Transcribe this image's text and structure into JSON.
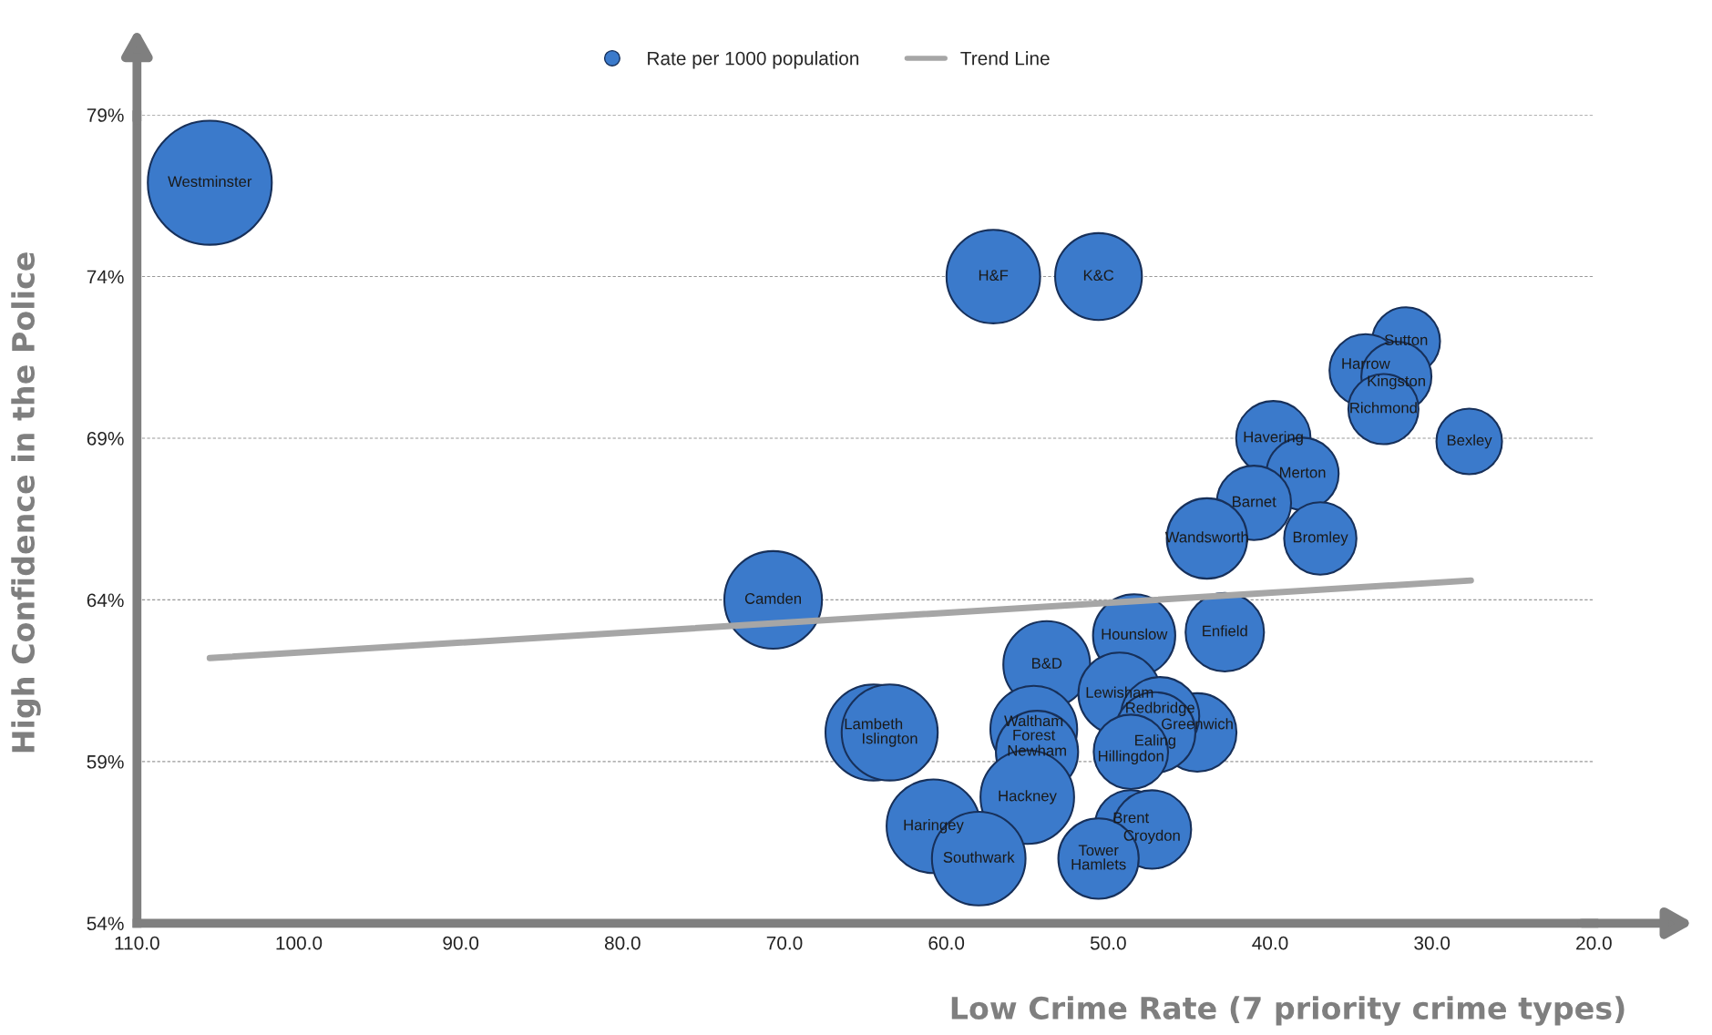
{
  "chart_data": {
    "type": "bubble",
    "xlabel": "Low Crime Rate (7 priority crime types)",
    "ylabel": "High Confidence in the Police",
    "xlim": [
      110,
      20
    ],
    "xticks": [
      {
        "value": 110,
        "label": "110.0"
      },
      {
        "value": 100,
        "label": "100.0"
      },
      {
        "value": 90,
        "label": "90.0"
      },
      {
        "value": 80,
        "label": "80.0"
      },
      {
        "value": 70,
        "label": "70.0"
      },
      {
        "value": 60,
        "label": "60.0"
      },
      {
        "value": 50,
        "label": "50.0"
      },
      {
        "value": 40,
        "label": "40.0"
      },
      {
        "value": 30,
        "label": "30.0"
      },
      {
        "value": 20,
        "label": "20.0"
      }
    ],
    "ylim": [
      54,
      79
    ],
    "yticks": [
      {
        "value": 54,
        "label": "54%"
      },
      {
        "value": 59,
        "label": "59%"
      },
      {
        "value": 64,
        "label": "64%"
      },
      {
        "value": 69,
        "label": "69%"
      },
      {
        "value": 74,
        "label": "74%"
      },
      {
        "value": 79,
        "label": "79%"
      }
    ],
    "grid": "y",
    "legend": "top",
    "series": [
      {
        "name": "Rate per 1000 population",
        "color": "#3b7acb",
        "x": [
          105.5,
          57.1,
          50.6,
          31.6,
          34.1,
          32.2,
          33.0,
          27.7,
          39.8,
          38.0,
          41.0,
          43.9,
          36.9,
          70.7,
          48.4,
          42.8,
          53.8,
          49.3,
          54.6,
          54.4,
          64.5,
          63.5,
          44.5,
          46.8,
          47.1,
          48.6,
          55.0,
          60.8,
          58.0,
          48.6,
          47.3,
          50.6
        ],
        "values": [
          76.9,
          74.0,
          74.0,
          72.0,
          71.1,
          70.9,
          69.9,
          68.9,
          69.0,
          67.9,
          67.0,
          65.9,
          65.9,
          64.0,
          62.9,
          63.0,
          62.0,
          61.1,
          60.0,
          59.3,
          59.9,
          59.9,
          59.9,
          60.4,
          59.9,
          59.3,
          57.9,
          57.0,
          56.0,
          57.0,
          56.9,
          56.0
        ],
        "sizes": [
          1,
          0.57,
          0.49,
          0.3,
          0.34,
          0.32,
          0.32,
          0.28,
          0.36,
          0.34,
          0.36,
          0.42,
          0.34,
          0.62,
          0.44,
          0.4,
          0.49,
          0.44,
          0.49,
          0.44,
          0.6,
          0.6,
          0.4,
          0.4,
          0.42,
          0.36,
          0.57,
          0.57,
          0.57,
          0.34,
          0.4,
          0.42
        ]
      },
      {
        "name": "Trend Line",
        "type": "line",
        "color": "#a6a6a6",
        "x": [
          105.5,
          27.6
        ],
        "values": [
          62.2,
          64.6
        ]
      }
    ],
    "annotations": [
      {
        "text": "Westminster",
        "x": 105.5,
        "y": 76.9
      },
      {
        "text": "H&F",
        "x": 57.1,
        "y": 74.0
      },
      {
        "text": "K&C",
        "x": 50.6,
        "y": 74.0
      },
      {
        "text": "Sutton",
        "x": 31.6,
        "y": 72.0
      },
      {
        "text": "Harrow",
        "x": 34.1,
        "y": 71.1
      },
      {
        "text": "Kingston",
        "x": 32.2,
        "y": 70.9
      },
      {
        "text": "Richmond",
        "x": 33.0,
        "y": 69.9
      },
      {
        "text": "Bexley",
        "x": 27.7,
        "y": 68.9
      },
      {
        "text": "Havering",
        "x": 39.8,
        "y": 69.0
      },
      {
        "text": "Merton",
        "x": 38.0,
        "y": 67.9
      },
      {
        "text": "Barnet",
        "x": 41.0,
        "y": 67.0
      },
      {
        "text": "Wandsworth",
        "x": 43.9,
        "y": 65.9
      },
      {
        "text": "Bromley",
        "x": 36.9,
        "y": 65.9
      },
      {
        "text": "Camden",
        "x": 70.7,
        "y": 64.0
      },
      {
        "text": "Hounslow",
        "x": 48.4,
        "y": 62.9
      },
      {
        "text": "Enfield",
        "x": 42.8,
        "y": 63.0
      },
      {
        "text": "B&D",
        "x": 53.8,
        "y": 62.0
      },
      {
        "text": "Lewisham",
        "x": 49.3,
        "y": 61.1
      },
      {
        "text": "Waltham\nForest",
        "x": 54.6,
        "y": 60.0
      },
      {
        "text": "Newham",
        "x": 54.4,
        "y": 59.3
      },
      {
        "text": "Lambeth",
        "x": 64.5,
        "y": 59.9
      },
      {
        "text": "Islington",
        "x": 63.5,
        "y": 59.9
      },
      {
        "text": "Greenwich",
        "x": 44.5,
        "y": 59.9
      },
      {
        "text": "Redbridge",
        "x": 46.8,
        "y": 60.4
      },
      {
        "text": "Ealing",
        "x": 47.1,
        "y": 59.9
      },
      {
        "text": "Hillingdon",
        "x": 48.6,
        "y": 59.3
      },
      {
        "text": "Hackney",
        "x": 55.0,
        "y": 57.9
      },
      {
        "text": "Haringey",
        "x": 60.8,
        "y": 57.0
      },
      {
        "text": "Southwark",
        "x": 58.0,
        "y": 56.0
      },
      {
        "text": "Brent",
        "x": 48.6,
        "y": 57.0
      },
      {
        "text": "Croydon",
        "x": 47.3,
        "y": 56.9
      },
      {
        "text": "Tower\nHamlets",
        "x": 50.6,
        "y": 56.0
      }
    ]
  }
}
